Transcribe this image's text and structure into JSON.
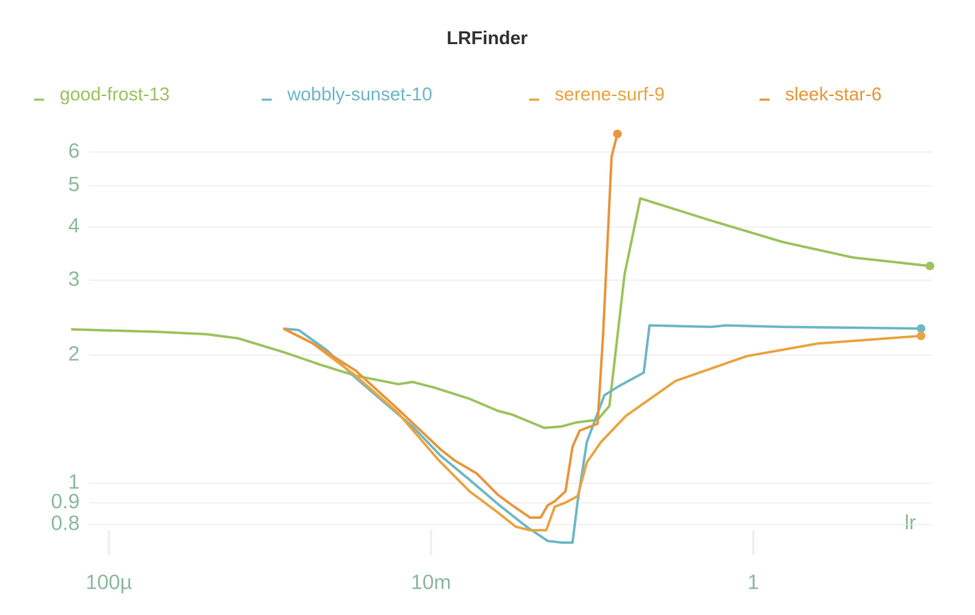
{
  "chart_data": {
    "type": "line",
    "title": "LRFinder",
    "x_label": "lr",
    "log_x": true,
    "log_y": true,
    "grid": true,
    "xlim": [
      5.83e-05,
      12.8
    ],
    "ylim": [
      0.691,
      6.83
    ],
    "xticks": [
      {
        "value": 0.0001,
        "label": "100µ"
      },
      {
        "value": 0.01,
        "label": "10m"
      },
      1
    ],
    "yticks": [
      0.8,
      0.9,
      1,
      2,
      3,
      4,
      5,
      6
    ],
    "series": [
      {
        "name": "good-frost-13",
        "color": "#9cc35e",
        "x": [
          5.83e-05,
          0.000198,
          0.000403,
          0.000637,
          0.00123,
          0.00205,
          0.0034,
          0.00627,
          0.00767,
          0.0104,
          0.0173,
          0.026,
          0.0319,
          0.0504,
          0.0649,
          0.0796,
          0.108,
          0.128,
          0.159,
          0.199,
          0.549,
          1.52,
          4.19,
          12.5
        ],
        "values": [
          2.3,
          2.27,
          2.24,
          2.19,
          2.03,
          1.9,
          1.79,
          1.71,
          1.73,
          1.68,
          1.58,
          1.48,
          1.45,
          1.35,
          1.36,
          1.39,
          1.41,
          1.52,
          3.1,
          4.67,
          4.14,
          3.69,
          3.39,
          3.24
        ]
      },
      {
        "name": "wobbly-sunset-10",
        "color": "#6db8c6",
        "x": [
          0.00121,
          0.00151,
          0.00227,
          0.0034,
          0.00511,
          0.00767,
          0.0115,
          0.0173,
          0.026,
          0.0391,
          0.053,
          0.0649,
          0.0756,
          0.0812,
          0.0927,
          0.119,
          0.146,
          0.209,
          0.227,
          0.549,
          0.673,
          1.52,
          4.19,
          11.0
        ],
        "values": [
          2.31,
          2.29,
          2.05,
          1.77,
          1.55,
          1.36,
          1.16,
          1.02,
          0.894,
          0.791,
          0.732,
          0.726,
          0.726,
          0.905,
          1.25,
          1.61,
          1.69,
          1.82,
          2.35,
          2.33,
          2.35,
          2.33,
          2.32,
          2.31
        ]
      },
      {
        "name": "serene-surf-9",
        "color": "#e9a441",
        "x": [
          0.00121,
          0.00185,
          0.0034,
          0.00627,
          0.011,
          0.0173,
          0.026,
          0.0335,
          0.0411,
          0.0519,
          0.0586,
          0.0683,
          0.0812,
          0.0927,
          0.1135,
          0.162,
          0.33,
          0.912,
          2.52,
          11.0
        ],
        "values": [
          2.31,
          2.13,
          1.79,
          1.46,
          1.14,
          0.958,
          0.854,
          0.791,
          0.776,
          0.776,
          0.881,
          0.901,
          0.933,
          1.12,
          1.25,
          1.44,
          1.74,
          1.99,
          2.13,
          2.22
        ]
      },
      {
        "name": "sleek-star-6",
        "color": "#e8963d",
        "x": [
          0.00121,
          0.00185,
          0.0034,
          0.00627,
          0.0115,
          0.0141,
          0.0192,
          0.026,
          0.0319,
          0.0411,
          0.0479,
          0.053,
          0.0586,
          0.0683,
          0.0756,
          0.0837,
          0.108,
          0.117,
          0.132,
          0.1435
        ],
        "values": [
          2.31,
          2.13,
          1.84,
          1.49,
          1.2,
          1.13,
          1.055,
          0.94,
          0.888,
          0.831,
          0.831,
          0.888,
          0.908,
          0.958,
          1.22,
          1.33,
          1.38,
          2.24,
          5.86,
          6.62
        ]
      }
    ]
  }
}
